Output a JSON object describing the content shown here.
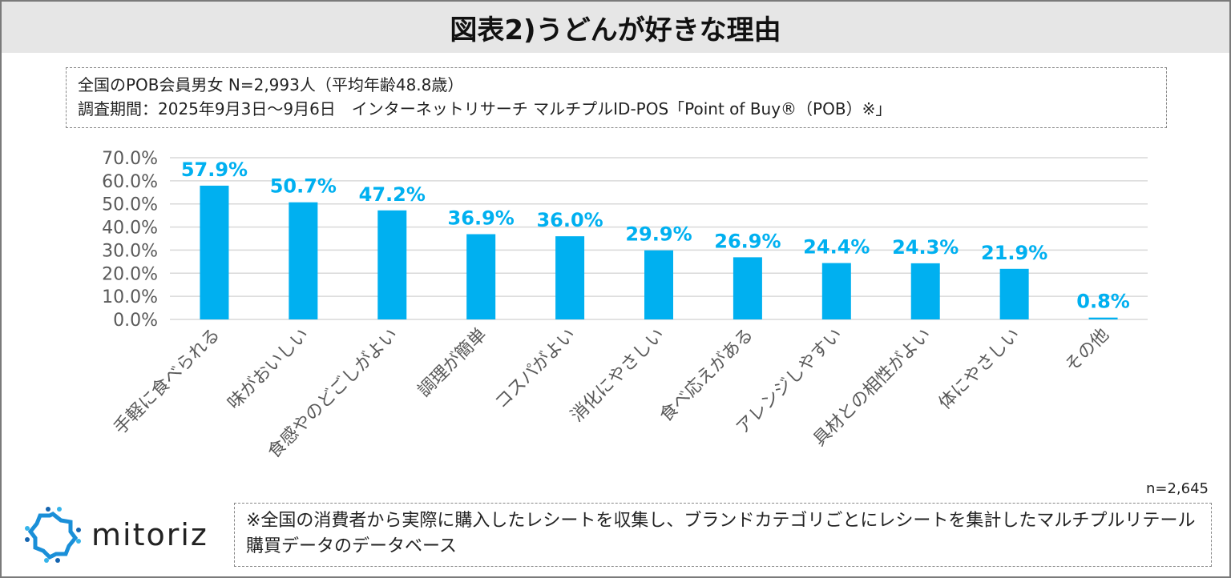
{
  "title": "図表2)うどんが好きな理由",
  "info": {
    "line1": "全国のPOB会員男女 N=2,993人（平均年齢48.8歳）",
    "line2": "調査期間：2025年9月3日～9月6日　インターネットリサーチ マルチプルID-POS「Point of Buy®（POB）※」"
  },
  "sample_size": "n=2,645",
  "note": "※全国の消費者から実際に購入したレシートを収集し、ブランドカテゴリごとにレシートを集計したマルチプルリテール購買データのデータベース",
  "logo": {
    "text": "mitoriz"
  },
  "colors": {
    "bar": "#00b0f0",
    "label": "#00b0f0",
    "grid": "#d9d9d9",
    "axis_text": "#595959"
  },
  "chart_data": {
    "type": "bar",
    "categories": [
      "手軽に食べられる",
      "味がおいしい",
      "食感やのどごしがよい",
      "調理が簡単",
      "コスパがよい",
      "消化にやさしい",
      "食べ応えがある",
      "アレンジしやすい",
      "具材との相性がよい",
      "体にやさしい",
      "その他"
    ],
    "values": [
      57.9,
      50.7,
      47.2,
      36.9,
      36.0,
      29.9,
      26.9,
      24.4,
      24.3,
      21.9,
      0.8
    ],
    "data_labels": [
      "57.9%",
      "50.7%",
      "47.2%",
      "36.9%",
      "36.0%",
      "29.9%",
      "26.9%",
      "24.4%",
      "24.3%",
      "21.9%",
      "0.8%"
    ],
    "yticks": [
      "0.0%",
      "10.0%",
      "20.0%",
      "30.0%",
      "40.0%",
      "50.0%",
      "60.0%",
      "70.0%"
    ],
    "ylim": [
      0,
      70
    ],
    "grid": true
  }
}
